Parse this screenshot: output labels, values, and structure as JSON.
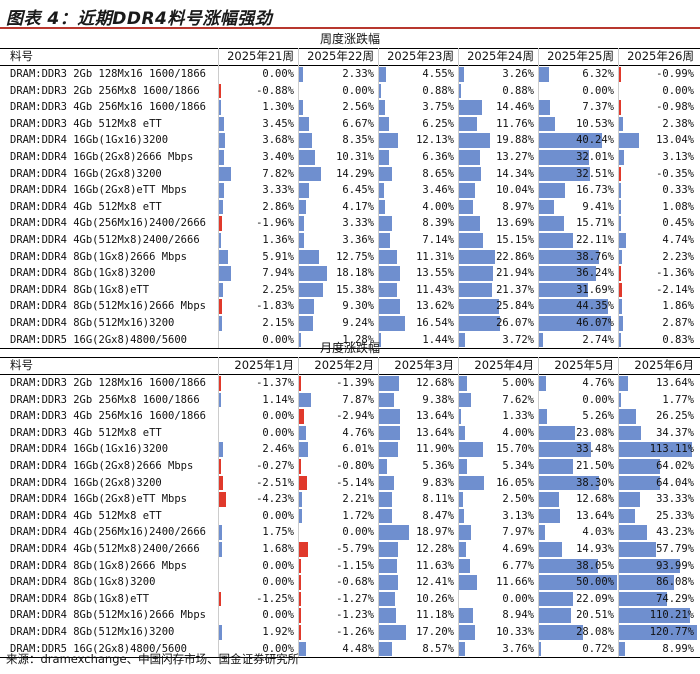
{
  "title": "图表 4：近期DDR4料号涨幅强劲",
  "source": "来源：dramexchange、中国闪存市场、国金证券研究所",
  "colors": {
    "positive": "#6f8fcf",
    "negative": "#e0392b",
    "rule": "#b8372e"
  },
  "weekly": {
    "section_title": "周度涨跌幅",
    "item_header": "料号",
    "columns": [
      "2025年21周",
      "2025年22周",
      "2025年23周",
      "2025年24周",
      "2025年25周",
      "2025年26周"
    ],
    "col_max": [
      50,
      50,
      50,
      50,
      50,
      50
    ],
    "rows": [
      {
        "name": "DRAM:DDR3 2Gb 128Mx16 1600/1866",
        "values": [
          0.0,
          2.33,
          4.55,
          3.26,
          6.32,
          -0.99
        ],
        "labels": [
          "0.00%",
          "2.33%",
          "4.55%",
          "3.26%",
          "6.32%",
          "-0.99%"
        ]
      },
      {
        "name": "DRAM:DDR3 2Gb 256Mx8 1600/1866",
        "values": [
          -0.88,
          0.0,
          0.88,
          0.88,
          0.0,
          0.0
        ],
        "labels": [
          "-0.88%",
          "0.00%",
          "0.88%",
          "0.88%",
          "0.00%",
          "0.00%"
        ]
      },
      {
        "name": "DRAM:DDR3 4Gb 256Mx16 1600/1866",
        "values": [
          1.3,
          2.56,
          3.75,
          14.46,
          7.37,
          -0.98
        ],
        "labels": [
          "1.30%",
          "2.56%",
          "3.75%",
          "14.46%",
          "7.37%",
          "-0.98%"
        ]
      },
      {
        "name": "DRAM:DDR3 4Gb 512Mx8 eTT",
        "values": [
          3.45,
          6.67,
          6.25,
          11.76,
          10.53,
          2.38
        ],
        "labels": [
          "3.45%",
          "6.67%",
          "6.25%",
          "11.76%",
          "10.53%",
          "2.38%"
        ]
      },
      {
        "name": "DRAM:DDR4 16Gb(1Gx16)3200",
        "values": [
          3.68,
          8.35,
          12.13,
          19.88,
          40.24,
          13.04
        ],
        "labels": [
          "3.68%",
          "8.35%",
          "12.13%",
          "19.88%",
          "40.24%",
          "13.04%"
        ]
      },
      {
        "name": "DRAM:DDR4 16Gb(2Gx8)2666 Mbps",
        "values": [
          3.4,
          10.31,
          6.36,
          13.27,
          32.01,
          3.13
        ],
        "labels": [
          "3.40%",
          "10.31%",
          "6.36%",
          "13.27%",
          "32.01%",
          "3.13%"
        ]
      },
      {
        "name": "DRAM:DDR4 16Gb(2Gx8)3200",
        "values": [
          7.82,
          14.29,
          8.65,
          14.34,
          32.51,
          -0.35
        ],
        "labels": [
          "7.82%",
          "14.29%",
          "8.65%",
          "14.34%",
          "32.51%",
          "-0.35%"
        ]
      },
      {
        "name": "DRAM:DDR4 16Gb(2Gx8)eTT Mbps",
        "values": [
          3.33,
          6.45,
          3.46,
          10.04,
          16.73,
          0.33
        ],
        "labels": [
          "3.33%",
          "6.45%",
          "3.46%",
          "10.04%",
          "16.73%",
          "0.33%"
        ]
      },
      {
        "name": "DRAM:DDR4 4Gb 512Mx8 eTT",
        "values": [
          2.86,
          4.17,
          4.0,
          8.97,
          9.41,
          1.08
        ],
        "labels": [
          "2.86%",
          "4.17%",
          "4.00%",
          "8.97%",
          "9.41%",
          "1.08%"
        ]
      },
      {
        "name": "DRAM:DDR4 4Gb(256Mx16)2400/2666",
        "values": [
          -1.96,
          3.33,
          8.39,
          13.69,
          15.71,
          0.45
        ],
        "labels": [
          "-1.96%",
          "3.33%",
          "8.39%",
          "13.69%",
          "15.71%",
          "0.45%"
        ]
      },
      {
        "name": "DRAM:DDR4 4Gb(512Mx8)2400/2666",
        "values": [
          1.36,
          3.36,
          7.14,
          15.15,
          22.11,
          4.74
        ],
        "labels": [
          "1.36%",
          "3.36%",
          "7.14%",
          "15.15%",
          "22.11%",
          "4.74%"
        ]
      },
      {
        "name": "DRAM:DDR4 8Gb(1Gx8)2666 Mbps",
        "values": [
          5.91,
          12.75,
          11.31,
          22.86,
          38.76,
          2.23
        ],
        "labels": [
          "5.91%",
          "12.75%",
          "11.31%",
          "22.86%",
          "38.76%",
          "2.23%"
        ]
      },
      {
        "name": "DRAM:DDR4 8Gb(1Gx8)3200",
        "values": [
          7.94,
          18.18,
          13.55,
          21.94,
          36.24,
          -1.36
        ],
        "labels": [
          "7.94%",
          "18.18%",
          "13.55%",
          "21.94%",
          "36.24%",
          "-1.36%"
        ]
      },
      {
        "name": "DRAM:DDR4 8Gb(1Gx8)eTT",
        "values": [
          2.25,
          15.38,
          11.43,
          21.37,
          31.69,
          -2.14
        ],
        "labels": [
          "2.25%",
          "15.38%",
          "11.43%",
          "21.37%",
          "31.69%",
          "-2.14%"
        ]
      },
      {
        "name": "DRAM:DDR4 8Gb(512Mx16)2666 Mbps",
        "values": [
          -1.83,
          9.3,
          13.62,
          25.84,
          44.35,
          1.86
        ],
        "labels": [
          "-1.83%",
          "9.30%",
          "13.62%",
          "25.84%",
          "44.35%",
          "1.86%"
        ]
      },
      {
        "name": "DRAM:DDR4 8Gb(512Mx16)3200",
        "values": [
          2.15,
          9.24,
          16.54,
          26.07,
          46.07,
          2.87
        ],
        "labels": [
          "2.15%",
          "9.24%",
          "16.54%",
          "26.07%",
          "46.07%",
          "2.87%"
        ]
      },
      {
        "name": "DRAM:DDR5 16G(2Gx8)4800/5600",
        "values": [
          0.0,
          1.28,
          1.44,
          3.72,
          2.74,
          0.83
        ],
        "labels": [
          "0.00%",
          "1.28%",
          "1.44%",
          "3.72%",
          "2.74%",
          "0.83%"
        ]
      }
    ]
  },
  "monthly": {
    "section_title": "月度涨跌幅",
    "item_header": "料号",
    "columns": [
      "2025年1月",
      "2025年2月",
      "2025年3月",
      "2025年4月",
      "2025年5月",
      "2025年6月"
    ],
    "col_max": [
      50,
      50,
      50,
      50,
      50,
      121
    ],
    "rows": [
      {
        "name": "DRAM:DDR3 2Gb 128Mx16 1600/1866",
        "values": [
          -1.37,
          -1.39,
          12.68,
          5.0,
          4.76,
          13.64
        ],
        "labels": [
          "-1.37%",
          "-1.39%",
          "12.68%",
          "5.00%",
          "4.76%",
          "13.64%"
        ]
      },
      {
        "name": "DRAM:DDR3 2Gb 256Mx8 1600/1866",
        "values": [
          1.14,
          7.87,
          9.38,
          7.62,
          0.0,
          1.77
        ],
        "labels": [
          "1.14%",
          "7.87%",
          "9.38%",
          "7.62%",
          "0.00%",
          "1.77%"
        ]
      },
      {
        "name": "DRAM:DDR3 4Gb 256Mx16 1600/1866",
        "values": [
          0.0,
          -2.94,
          13.64,
          1.33,
          5.26,
          26.25
        ],
        "labels": [
          "0.00%",
          "-2.94%",
          "13.64%",
          "1.33%",
          "5.26%",
          "26.25%"
        ]
      },
      {
        "name": "DRAM:DDR3 4Gb 512Mx8 eTT",
        "values": [
          0.0,
          4.76,
          13.64,
          4.0,
          23.08,
          34.37
        ],
        "labels": [
          "0.00%",
          "4.76%",
          "13.64%",
          "4.00%",
          "23.08%",
          "34.37%"
        ]
      },
      {
        "name": "DRAM:DDR4 16Gb(1Gx16)3200",
        "values": [
          2.46,
          6.01,
          11.9,
          15.7,
          33.48,
          113.11
        ],
        "labels": [
          "2.46%",
          "6.01%",
          "11.90%",
          "15.70%",
          "33.48%",
          "113.11%"
        ]
      },
      {
        "name": "DRAM:DDR4 16Gb(2Gx8)2666 Mbps",
        "values": [
          -0.27,
          -0.8,
          5.36,
          5.34,
          21.5,
          64.02
        ],
        "labels": [
          "-0.27%",
          "-0.80%",
          "5.36%",
          "5.34%",
          "21.50%",
          "64.02%"
        ]
      },
      {
        "name": "DRAM:DDR4 16Gb(2Gx8)3200",
        "values": [
          -2.51,
          -5.14,
          9.83,
          16.05,
          38.3,
          64.04
        ],
        "labels": [
          "-2.51%",
          "-5.14%",
          "9.83%",
          "16.05%",
          "38.30%",
          "64.04%"
        ]
      },
      {
        "name": "DRAM:DDR4 16Gb(2Gx8)eTT Mbps",
        "values": [
          -4.23,
          2.21,
          8.11,
          2.5,
          12.68,
          33.33
        ],
        "labels": [
          "-4.23%",
          "2.21%",
          "8.11%",
          "2.50%",
          "12.68%",
          "33.33%"
        ]
      },
      {
        "name": "DRAM:DDR4 4Gb 512Mx8 eTT",
        "values": [
          0.0,
          1.72,
          8.47,
          3.13,
          13.64,
          25.33
        ],
        "labels": [
          "0.00%",
          "1.72%",
          "8.47%",
          "3.13%",
          "13.64%",
          "25.33%"
        ]
      },
      {
        "name": "DRAM:DDR4 4Gb(256Mx16)2400/2666",
        "values": [
          1.75,
          0.0,
          18.97,
          7.97,
          4.03,
          43.23
        ],
        "labels": [
          "1.75%",
          "0.00%",
          "18.97%",
          "7.97%",
          "4.03%",
          "43.23%"
        ]
      },
      {
        "name": "DRAM:DDR4 4Gb(512Mx8)2400/2666",
        "values": [
          1.68,
          -5.79,
          12.28,
          4.69,
          14.93,
          57.79
        ],
        "labels": [
          "1.68%",
          "-5.79%",
          "12.28%",
          "4.69%",
          "14.93%",
          "57.79%"
        ]
      },
      {
        "name": "DRAM:DDR4 8Gb(1Gx8)2666 Mbps",
        "values": [
          0.0,
          -1.15,
          11.63,
          6.77,
          38.05,
          93.99
        ],
        "labels": [
          "0.00%",
          "-1.15%",
          "11.63%",
          "6.77%",
          "38.05%",
          "93.99%"
        ]
      },
      {
        "name": "DRAM:DDR4 8Gb(1Gx8)3200",
        "values": [
          0.0,
          -0.68,
          12.41,
          11.66,
          50.0,
          86.08
        ],
        "labels": [
          "0.00%",
          "-0.68%",
          "12.41%",
          "11.66%",
          "50.00%",
          "86.08%"
        ]
      },
      {
        "name": "DRAM:DDR4 8Gb(1Gx8)eTT",
        "values": [
          -1.25,
          -1.27,
          10.26,
          0.0,
          22.09,
          74.29
        ],
        "labels": [
          "-1.25%",
          "-1.27%",
          "10.26%",
          "0.00%",
          "22.09%",
          "74.29%"
        ]
      },
      {
        "name": "DRAM:DDR4 8Gb(512Mx16)2666 Mbps",
        "values": [
          0.0,
          -1.23,
          11.18,
          8.94,
          20.51,
          110.21
        ],
        "labels": [
          "0.00%",
          "-1.23%",
          "11.18%",
          "8.94%",
          "20.51%",
          "110.21%"
        ]
      },
      {
        "name": "DRAM:DDR4 8Gb(512Mx16)3200",
        "values": [
          1.92,
          -1.26,
          17.2,
          10.33,
          28.08,
          120.77
        ],
        "labels": [
          "1.92%",
          "-1.26%",
          "17.20%",
          "10.33%",
          "28.08%",
          "120.77%"
        ]
      },
      {
        "name": "DRAM:DDR5 16G(2Gx8)4800/5600",
        "values": [
          0.0,
          4.48,
          8.57,
          3.76,
          0.72,
          8.99
        ],
        "labels": [
          "0.00%",
          "4.48%",
          "8.57%",
          "3.76%",
          "0.72%",
          "8.99%"
        ]
      }
    ]
  }
}
